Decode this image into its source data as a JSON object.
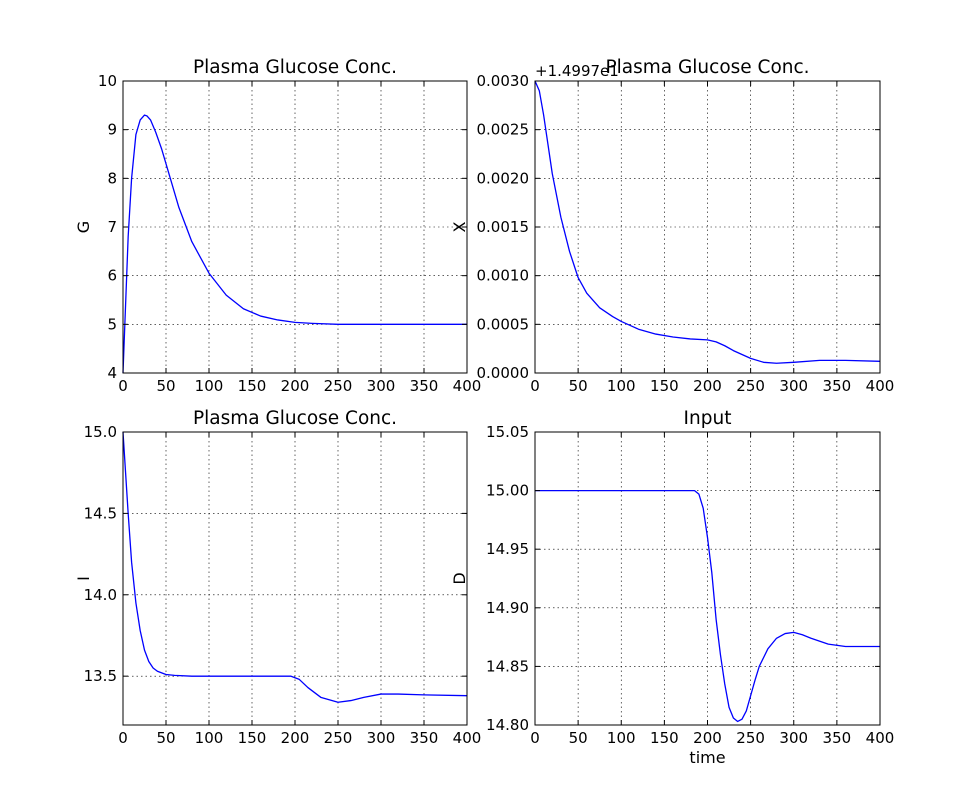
{
  "chart_data": [
    {
      "type": "line",
      "title": "Plasma Glucose Conc.",
      "xlabel": "",
      "ylabel": "G",
      "xlim": [
        0,
        400
      ],
      "ylim": [
        4,
        10
      ],
      "xticks": [
        0,
        50,
        100,
        150,
        200,
        250,
        300,
        350,
        400
      ],
      "yticks": [
        4,
        5,
        6,
        7,
        8,
        9,
        10
      ],
      "tick_labels_x": [
        "0",
        "50",
        "100",
        "150",
        "200",
        "250",
        "300",
        "350",
        "400"
      ],
      "tick_labels_y": [
        "4",
        "5",
        "6",
        "7",
        "8",
        "9",
        "10"
      ],
      "offset_text": "",
      "grid": true,
      "line_color": "#0000ff",
      "series": [
        {
          "x": [
            0,
            3,
            6,
            10,
            15,
            20,
            25,
            28,
            32,
            38,
            45,
            55,
            65,
            80,
            100,
            120,
            140,
            160,
            180,
            200,
            220,
            250,
            300,
            350,
            400
          ],
          "values": [
            4.0,
            5.4,
            6.8,
            8.0,
            8.9,
            9.2,
            9.3,
            9.28,
            9.2,
            8.95,
            8.6,
            8.0,
            7.4,
            6.7,
            6.05,
            5.6,
            5.32,
            5.17,
            5.09,
            5.04,
            5.02,
            5.0,
            5.0,
            5.0,
            5.0
          ]
        }
      ]
    },
    {
      "type": "line",
      "title": "Plasma Glucose Conc.",
      "xlabel": "",
      "ylabel": "X",
      "xlim": [
        0,
        400
      ],
      "ylim": [
        0.0,
        0.003
      ],
      "xticks": [
        0,
        50,
        100,
        150,
        200,
        250,
        300,
        350,
        400
      ],
      "yticks": [
        0.0,
        0.0005,
        0.001,
        0.0015,
        0.002,
        0.0025,
        0.003
      ],
      "tick_labels_x": [
        "0",
        "50",
        "100",
        "150",
        "200",
        "250",
        "300",
        "350",
        "400"
      ],
      "tick_labels_y": [
        "0.0000",
        "0.0005",
        "0.0010",
        "0.0015",
        "0.0020",
        "0.0025",
        "0.0030"
      ],
      "offset_text": "+1.4997e1",
      "grid": true,
      "line_color": "#0000ff",
      "series": [
        {
          "x": [
            0,
            5,
            10,
            15,
            20,
            30,
            40,
            50,
            60,
            75,
            90,
            100,
            120,
            140,
            160,
            180,
            200,
            210,
            220,
            230,
            250,
            265,
            280,
            300,
            330,
            360,
            400
          ],
          "values": [
            0.003,
            0.0029,
            0.00265,
            0.00235,
            0.00205,
            0.0016,
            0.00125,
            0.00098,
            0.00082,
            0.00067,
            0.00058,
            0.00053,
            0.00045,
            0.0004,
            0.00037,
            0.00035,
            0.00034,
            0.00032,
            0.00028,
            0.00023,
            0.00015,
            0.00011,
            0.0001,
            0.00011,
            0.00013,
            0.00013,
            0.00012
          ]
        }
      ]
    },
    {
      "type": "line",
      "title": "Plasma Glucose Conc.",
      "xlabel": "",
      "ylabel": "I",
      "xlim": [
        0,
        400
      ],
      "ylim": [
        13.2,
        15.0
      ],
      "xticks": [
        0,
        50,
        100,
        150,
        200,
        250,
        300,
        350,
        400
      ],
      "yticks": [
        13.5,
        14.0,
        14.5,
        15.0
      ],
      "tick_labels_x": [
        "0",
        "50",
        "100",
        "150",
        "200",
        "250",
        "300",
        "350",
        "400"
      ],
      "tick_labels_y": [
        "13.5",
        "14.0",
        "14.5",
        "15.0"
      ],
      "offset_text": "",
      "grid": true,
      "line_color": "#0000ff",
      "series": [
        {
          "x": [
            0,
            3,
            6,
            10,
            15,
            20,
            25,
            30,
            35,
            40,
            50,
            60,
            80,
            100,
            150,
            195,
            205,
            215,
            230,
            250,
            265,
            280,
            300,
            320,
            350,
            400
          ],
          "values": [
            15.0,
            14.75,
            14.5,
            14.2,
            13.95,
            13.78,
            13.66,
            13.59,
            13.55,
            13.53,
            13.51,
            13.505,
            13.5,
            13.5,
            13.5,
            13.5,
            13.48,
            13.43,
            13.37,
            13.34,
            13.35,
            13.37,
            13.39,
            13.39,
            13.385,
            13.38
          ]
        }
      ]
    },
    {
      "type": "line",
      "title": "Input",
      "xlabel": "time",
      "ylabel": "D",
      "xlim": [
        0,
        400
      ],
      "ylim": [
        14.8,
        15.05
      ],
      "xticks": [
        0,
        50,
        100,
        150,
        200,
        250,
        300,
        350,
        400
      ],
      "yticks": [
        14.8,
        14.85,
        14.9,
        14.95,
        15.0,
        15.05
      ],
      "tick_labels_x": [
        "0",
        "50",
        "100",
        "150",
        "200",
        "250",
        "300",
        "350",
        "400"
      ],
      "tick_labels_y": [
        "14.80",
        "14.85",
        "14.90",
        "14.95",
        "15.00",
        "15.05"
      ],
      "offset_text": "",
      "grid": true,
      "line_color": "#0000ff",
      "series": [
        {
          "x": [
            0,
            100,
            185,
            190,
            195,
            200,
            205,
            210,
            215,
            220,
            225,
            230,
            235,
            240,
            245,
            250,
            255,
            260,
            270,
            280,
            290,
            300,
            310,
            320,
            340,
            360,
            400
          ],
          "values": [
            15.0,
            15.0,
            15.0,
            14.997,
            14.985,
            14.96,
            14.93,
            14.89,
            14.86,
            14.835,
            14.815,
            14.806,
            14.803,
            14.805,
            14.812,
            14.825,
            14.838,
            14.85,
            14.865,
            14.874,
            14.878,
            14.879,
            14.877,
            14.874,
            14.869,
            14.867,
            14.867
          ]
        }
      ]
    }
  ]
}
